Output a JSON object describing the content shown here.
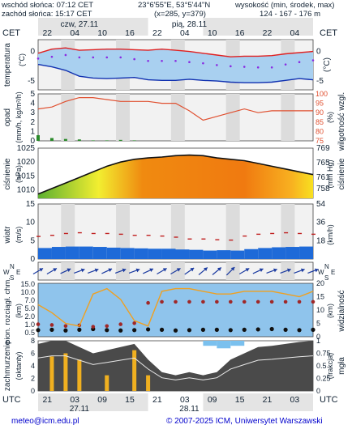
{
  "header": {
    "sunrise": "wschód słońca: 07:12 CET",
    "sunset": "zachód słońca: 15:17 CET",
    "coords": "23°6'55\"E, 53°5'44\"N",
    "grid": "(x=285, y=379)",
    "elev_label": "wysokość (min, środek, max)",
    "elev_values": "124 - 167 - 176 m"
  },
  "footer": {
    "email": "meteo@icm.edu.pl",
    "copyright": "© 2007-2025 ICM, Uniwersytet Warszawski"
  },
  "time_axis": {
    "tz_left": "CET",
    "tz_right": "CET",
    "utc_left": "UTC",
    "utc_right": "UTC",
    "top_hours": [
      "22",
      "04",
      "10",
      "16",
      "22",
      "04",
      "10",
      "16",
      "22",
      "04"
    ],
    "bottom_hours": [
      "21",
      "03",
      "09",
      "15",
      "21",
      "03",
      "09",
      "15",
      "21",
      "03"
    ],
    "top_days": [
      "czw, 27.11",
      "pią, 28.11"
    ],
    "bottom_days": [
      "27.11",
      "28.11"
    ]
  },
  "chart_data": [
    {
      "type": "line",
      "ylabel": "temperatura (°C)",
      "ylabel_left": "temperatura",
      "unit_left": "(°C)",
      "unit_right": "(°C)",
      "ylim": [
        -6.5,
        2
      ],
      "yticks": [
        0,
        -5
      ],
      "x_hours": [
        0,
        3,
        6,
        9,
        12,
        15,
        18,
        21,
        24,
        27,
        30,
        33,
        36,
        39,
        42,
        45,
        48,
        51,
        54,
        57,
        60
      ],
      "series": [
        {
          "role": "max",
          "color": "#e02020",
          "values": [
            -0.3,
            0.4,
            0.6,
            0.2,
            0.3,
            0.4,
            0.4,
            0.3,
            0.2,
            0.4,
            0.2,
            0.0,
            -0.3,
            -0.6,
            -0.9,
            -0.8,
            -0.8,
            -0.7,
            -0.4,
            -0.2,
            0.0
          ]
        },
        {
          "role": "mid",
          "color": "#8a2be2",
          "values": [
            -1.2,
            -0.9,
            -0.6,
            -1.0,
            -1.0,
            -1.0,
            -1.0,
            -1.3,
            -1.6,
            -1.6,
            -1.6,
            -1.8,
            -2.0,
            -2.3,
            -2.5,
            -2.6,
            -2.7,
            -2.7,
            -2.2,
            -1.8,
            -1.5
          ]
        },
        {
          "role": "min",
          "color": "#1030b0",
          "values": [
            -2.2,
            -2.6,
            -3.2,
            -4.2,
            -4.5,
            -4.6,
            -4.5,
            -4.4,
            -4.8,
            -4.9,
            -4.9,
            -4.7,
            -4.9,
            -5.0,
            -5.2,
            -5.3,
            -5.3,
            -5.2,
            -4.9,
            -4.6,
            -4.8
          ]
        }
      ]
    },
    {
      "type": "line",
      "ylabel": "opad (mm/h, kg/m²/h)",
      "ylabel_left": "opad",
      "unit_left": "(mm/h, kg/m²/h)",
      "ylabel_right": "wilgotność wzgl.",
      "unit_right": "(%)",
      "ylim": [
        0,
        5
      ],
      "yticks": [
        0,
        1,
        2,
        3,
        4,
        5
      ],
      "y2lim": [
        75,
        100
      ],
      "y2ticks": [
        75,
        80,
        85,
        90,
        95,
        100
      ],
      "x_hours": [
        0,
        3,
        6,
        9,
        12,
        15,
        18,
        21,
        24,
        27,
        30,
        33,
        36,
        39,
        42,
        45,
        48,
        51,
        54,
        57,
        60
      ],
      "humidity": [
        92,
        93,
        96,
        98,
        98,
        97,
        96,
        96,
        96,
        95,
        95,
        91,
        86,
        88,
        90,
        92,
        90,
        91,
        91,
        91,
        91
      ],
      "precip": [
        0.6,
        0.3,
        0.2,
        0.15,
        0.05,
        0.05,
        0.1,
        0.05,
        0,
        0,
        0,
        0,
        0,
        0,
        0,
        0,
        0,
        0,
        0,
        0,
        0
      ]
    },
    {
      "type": "area",
      "ylabel": "ciśnienie (hPa)",
      "ylabel_left": "ciśnienie",
      "unit_left": "(hPa)",
      "ylabel_right": "ciśnienie",
      "unit_right": "(mm Hg)",
      "ylim": [
        1007,
        1025
      ],
      "yticks": [
        1010,
        1015,
        1020,
        1025
      ],
      "y2ticks": [
        "758",
        "761",
        "765",
        "769"
      ],
      "x_hours": [
        0,
        3,
        6,
        9,
        12,
        15,
        18,
        21,
        24,
        27,
        30,
        33,
        36,
        39,
        42,
        45,
        48,
        51,
        54,
        57,
        60
      ],
      "values": [
        1008.5,
        1010.5,
        1012.5,
        1014.5,
        1016.5,
        1018.5,
        1020,
        1021,
        1021.5,
        1021.8,
        1022.3,
        1022.5,
        1022.3,
        1021.5,
        1021,
        1020.5,
        1019.5,
        1018.5,
        1017.5,
        1016.5,
        1015.5
      ]
    },
    {
      "type": "line",
      "ylabel": "wiatr (m/s)",
      "ylabel_left": "wiatr",
      "unit_left": "(m/s)",
      "ylabel_right": "",
      "unit_right": "(km/h)",
      "ylim": [
        0,
        15
      ],
      "yticks": [
        0,
        5,
        10,
        15
      ],
      "y2ticks": [
        "18",
        "36",
        "54"
      ],
      "x_hours": [
        0,
        3,
        6,
        9,
        12,
        15,
        18,
        21,
        24,
        27,
        30,
        33,
        36,
        39,
        42,
        45,
        48,
        51,
        54,
        57,
        60
      ],
      "speed": [
        3.0,
        3.3,
        3.4,
        3.4,
        3.3,
        3.1,
        3.0,
        2.9,
        2.8,
        2.8,
        2.6,
        2.5,
        2.3,
        2.4,
        2.3,
        2.7,
        3.0,
        3.2,
        3.3,
        3.4,
        3.2
      ],
      "gust": [
        6.2,
        6.5,
        7.0,
        7.2,
        7.0,
        7.0,
        6.8,
        6.5,
        6.5,
        6.3,
        6.0,
        5.5,
        5.5,
        5.3,
        5.2,
        6.3,
        6.8,
        7.0,
        7.2,
        7.0,
        6.8
      ]
    },
    {
      "type": "scatter",
      "ylabel": "kierunek",
      "ylabel_right": "",
      "compass": {
        "w": "W",
        "n": "N",
        "e": "E",
        "s": "S"
      },
      "direction_deg": [
        60,
        60,
        65,
        70,
        70,
        65,
        70,
        70,
        65,
        60,
        60,
        55,
        50,
        50,
        45,
        60,
        65,
        70,
        70,
        70,
        70
      ]
    },
    {
      "type": "scatter",
      "ylabel": "pion. rozciągł. chm. (km)",
      "ylabel_left": "pion. rozciągł. chm.",
      "unit_left": "(km)",
      "ylabel_right": "widzialność",
      "unit_right": "(km)",
      "ylim": [
        0,
        15
      ],
      "yticks": [
        "15.0",
        "10.0",
        "7.0",
        "5.0",
        "2.0",
        "1.0",
        "0.5"
      ],
      "y2ticks": [
        "0",
        "5",
        "10",
        "15",
        "20"
      ],
      "x_hours": [
        0,
        3,
        6,
        9,
        12,
        15,
        18,
        21,
        24,
        27,
        30,
        33,
        36,
        39,
        42,
        45,
        48,
        51,
        54,
        57,
        60
      ],
      "visibility": [
        12,
        9,
        5,
        4,
        16,
        18,
        14,
        6,
        4,
        17,
        18,
        18,
        17,
        16,
        16,
        17,
        17,
        17,
        16,
        15,
        17
      ],
      "cloud_base": [
        0.5,
        0.6,
        0.4,
        0.6,
        0.8,
        0.5,
        0.4,
        0.5,
        0.7,
        0.6,
        0.4,
        0.5,
        0.6,
        0.6,
        0.5,
        0.6,
        0.7,
        0.8,
        0.6,
        0.5,
        0.6
      ],
      "cloud_top": [
        3.5,
        3.3,
        3.0,
        3.2,
        2.8,
        3.0,
        3.5,
        3.8,
        9.5,
        9.8,
        9.8,
        9.8,
        9.8,
        9.8,
        9.8,
        9.8,
        9.8,
        9.8,
        9.8,
        9.8,
        9.8
      ]
    },
    {
      "type": "bar",
      "ylabel": "zachmurzenie (oktanty)",
      "ylabel_left": "zachmurzenie",
      "unit_left": "(oktanty)",
      "ylabel_right": "mgła",
      "unit_right": "(frakcja)",
      "ylim": [
        0,
        8
      ],
      "yticks": [
        0,
        2,
        4,
        6,
        8
      ],
      "y2ticks": [
        "0",
        "0.25",
        "0.5",
        "0.75",
        "1"
      ],
      "x_hours": [
        0,
        3,
        6,
        9,
        12,
        15,
        18,
        21,
        24,
        27,
        30,
        33,
        36,
        39,
        42,
        45,
        48,
        51,
        54,
        57,
        60
      ],
      "cloud_cover": [
        7.5,
        8,
        8,
        7,
        6,
        6.5,
        7,
        7.5,
        5,
        3,
        2.5,
        3,
        2.5,
        3,
        5,
        6,
        7,
        7.2,
        7.5,
        7.8,
        8
      ],
      "fog_bars": [
        0,
        5.5,
        6,
        5,
        0,
        2.5,
        0,
        6.5,
        2.5,
        0,
        0,
        0,
        0,
        0,
        0,
        0,
        0,
        0,
        0,
        0,
        0
      ],
      "fog_fraction": [
        0,
        0,
        0,
        0,
        0,
        0,
        0,
        0,
        0,
        0,
        0,
        0,
        0.1,
        0.15,
        0.1,
        0,
        0,
        0,
        0,
        0,
        0
      ]
    }
  ]
}
